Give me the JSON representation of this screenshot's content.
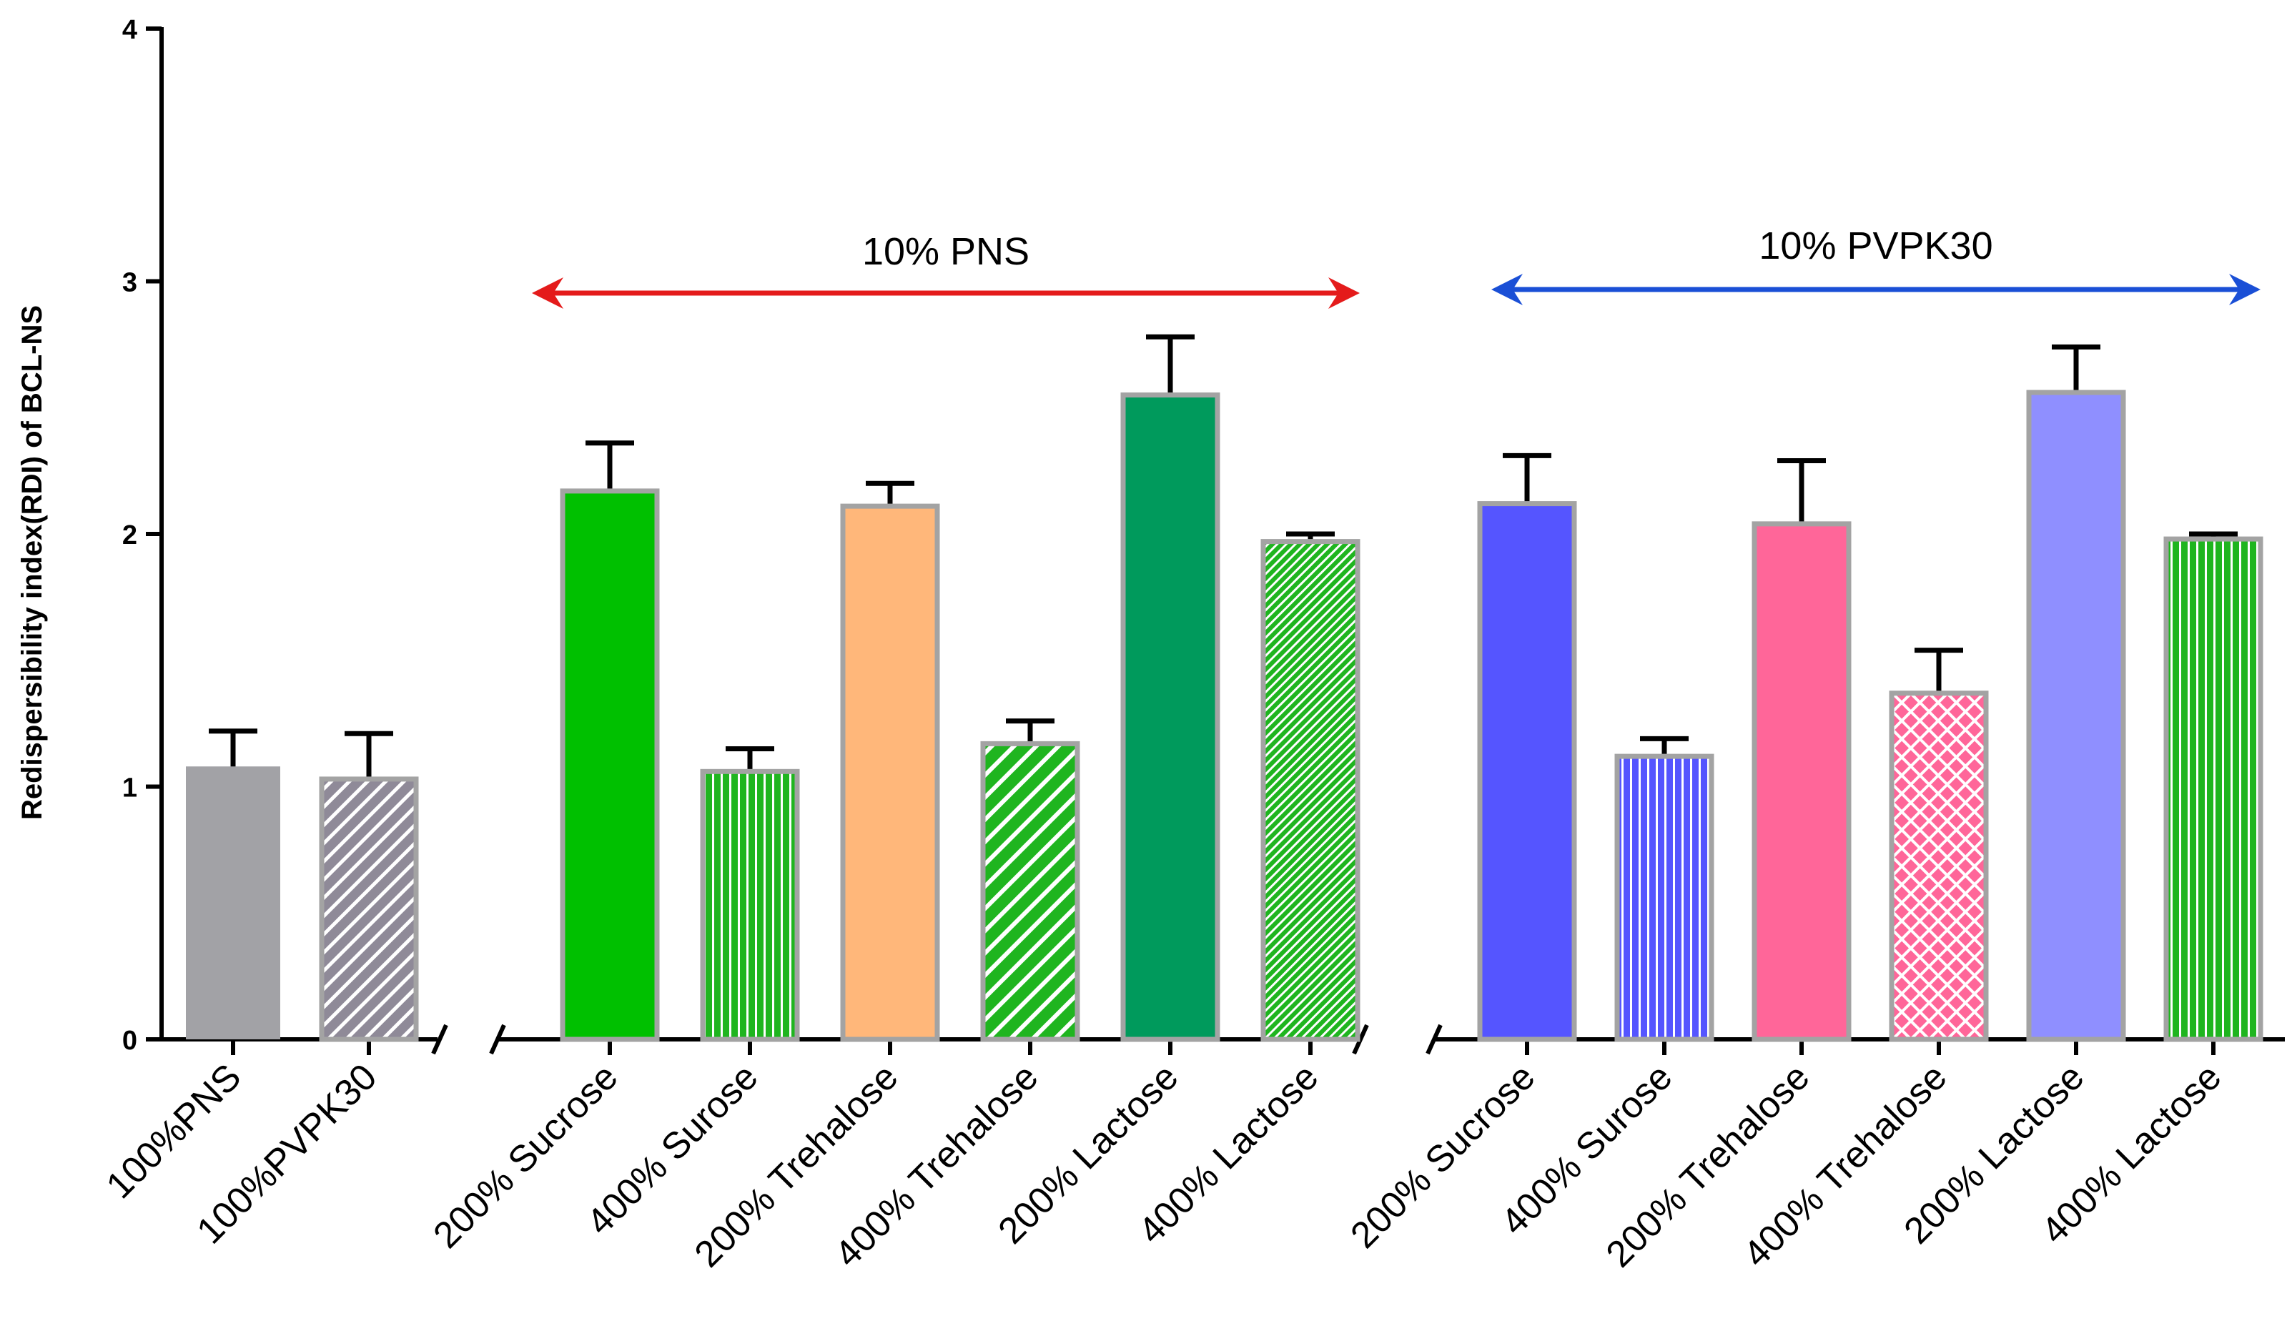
{
  "chart_data": {
    "type": "bar",
    "title": "",
    "xlabel": "",
    "ylabel": "Redispersibility index(RDI) of BCL-NS",
    "ylim": [
      0,
      4
    ],
    "yticks": [
      0,
      1,
      2,
      3,
      4
    ],
    "grid": false,
    "groups": [
      {
        "annotation": "",
        "bars": [
          {
            "category": "100%PNS",
            "value": 1.08,
            "error": 0.14,
            "color": "#a2a2a6",
            "pattern": "solid"
          },
          {
            "category": "100%PVPK30",
            "value": 1.03,
            "error": 0.18,
            "color": "#a2a2a6",
            "pattern": "diag-pink"
          }
        ]
      },
      {
        "annotation": "10% PNS",
        "annotation_color": "#e41b1b",
        "bars": [
          {
            "category": "200% Sucrose",
            "value": 2.17,
            "error": 0.19,
            "color": "#00c000",
            "pattern": "solid"
          },
          {
            "category": "400% Surose",
            "value": 1.06,
            "error": 0.09,
            "color": "#1fb51f",
            "pattern": "vertical"
          },
          {
            "category": "200% Trehalose",
            "value": 2.11,
            "error": 0.09,
            "color": "#ffb77a",
            "pattern": "solid"
          },
          {
            "category": "400% Trehalose",
            "value": 1.17,
            "error": 0.09,
            "color": "#1fb51f",
            "pattern": "diag-wide"
          },
          {
            "category": "200% Lactose",
            "value": 2.55,
            "error": 0.23,
            "color": "#009a5c",
            "pattern": "solid"
          },
          {
            "category": "400% Lactose",
            "value": 1.97,
            "error": 0.03,
            "color": "#1fb51f",
            "pattern": "diag-fine"
          }
        ]
      },
      {
        "annotation": "10% PVPK30",
        "annotation_color": "#1a4fd6",
        "bars": [
          {
            "category": "200% Sucrose",
            "value": 2.12,
            "error": 0.19,
            "color": "#5555ff",
            "pattern": "solid"
          },
          {
            "category": "400% Surose",
            "value": 1.12,
            "error": 0.07,
            "color": "#5555ff",
            "pattern": "vertical"
          },
          {
            "category": "200% Trehalose",
            "value": 2.04,
            "error": 0.25,
            "color": "#ff6699",
            "pattern": "solid"
          },
          {
            "category": "400% Trehalose",
            "value": 1.37,
            "error": 0.17,
            "color": "#ff6699",
            "pattern": "crosshatch"
          },
          {
            "category": "200% Lactose",
            "value": 2.56,
            "error": 0.18,
            "color": "#8f8fff",
            "pattern": "solid"
          },
          {
            "category": "400% Lactose",
            "value": 1.98,
            "error": 0.02,
            "color": "#1fb51f",
            "pattern": "vertical"
          }
        ]
      }
    ]
  }
}
